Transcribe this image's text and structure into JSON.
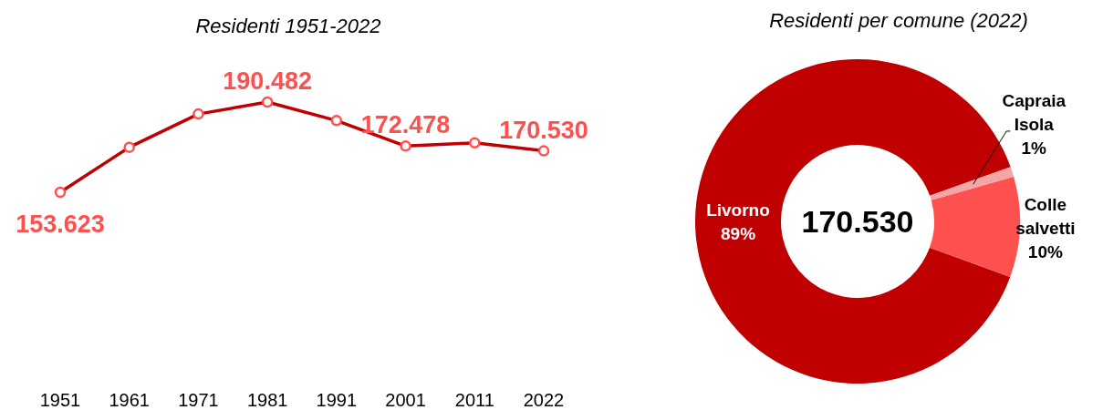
{
  "chart_data": [
    {
      "type": "line",
      "title": "Residenti 1951-2022",
      "categories": [
        "1951",
        "1961",
        "1971",
        "1981",
        "1991",
        "2001",
        "2011",
        "2022"
      ],
      "values": [
        153623,
        172000,
        185600,
        190482,
        182900,
        172478,
        173800,
        170530
      ],
      "value_labels": [
        "153.623",
        null,
        null,
        "190.482",
        null,
        "172.478",
        null,
        "170.530"
      ],
      "color": "#c00000",
      "marker": "circle"
    },
    {
      "type": "donut",
      "title": "Residenti per comune (2022)",
      "categories": [
        "Livorno",
        "Capraia Isola",
        "Colle salvetti"
      ],
      "values": [
        89,
        1,
        10
      ],
      "colors": [
        "#c00000",
        "#f4a6a6",
        "#ff5050"
      ],
      "value_labels": [
        "89%",
        "1%",
        "10%"
      ],
      "annotations": [
        "170.530"
      ]
    }
  ]
}
